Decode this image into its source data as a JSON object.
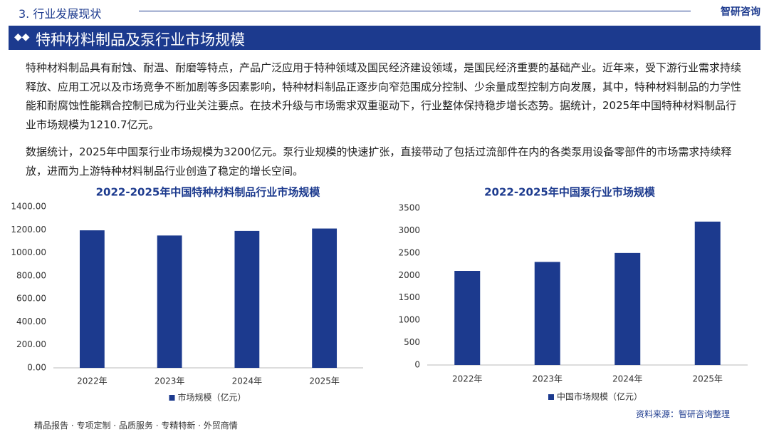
{
  "header": {
    "section": "3. 行业发展现状",
    "logo": "智研咨询",
    "title": "特种材料制品及泵行业市场规模"
  },
  "paragraphs": [
    "特种材料制品具有耐蚀、耐温、耐磨等特点，产品广泛应用于特种领域及国民经济建设领域，是国民经济重要的基础产业。近年来，受下游行业需求持续释放、应用工况以及市场竞争不断加剧等多因素影响，特种材料制品正逐步向窄范围成分控制、少余量成型控制方向发展，其中，特种材料制品的力学性能和耐腐蚀性能耦合控制已成为行业关注要点。在技术升级与市场需求双重驱动下，行业整体保持稳步增长态势。据统计，2025年中国特种材料制品行业市场规模为1210.7亿元。",
    "数据统计，2025年中国泵行业市场规模为3200亿元。泵行业规模的快速扩张，直接带动了包括过流部件在内的各类泵用设备零部件的市场需求持续释放，进而为上游特种材料制品行业创造了稳定的增长空间。"
  ],
  "chart_data": [
    {
      "type": "bar",
      "title": "2022-2025年中国特种材料制品行业市场规模",
      "categories": [
        "2022年",
        "2023年",
        "2024年",
        "2025年"
      ],
      "series": [
        {
          "name": "市场规模（亿元）",
          "color": "#1c3a8e",
          "values": [
            1195,
            1150,
            1190,
            1210.7
          ]
        }
      ],
      "ylim": [
        0,
        1400
      ],
      "yticks": [
        {
          "value": 0,
          "label": "0.00"
        },
        {
          "value": 200,
          "label": "200.00"
        },
        {
          "value": 400,
          "label": "400.00"
        },
        {
          "value": 600,
          "label": "600.00"
        },
        {
          "value": 800,
          "label": "800.00"
        },
        {
          "value": 1000,
          "label": "1000.00"
        },
        {
          "value": 1200,
          "label": "1200.00"
        },
        {
          "value": 1400,
          "label": "1400.00"
        }
      ],
      "grid": false
    },
    {
      "type": "bar",
      "title": "2022-2025年中国泵行业市场规模",
      "categories": [
        "2022年",
        "2023年",
        "2024年",
        "2025年"
      ],
      "series": [
        {
          "name": "中国市场规模（亿元）",
          "color": "#1c3a8e",
          "values": [
            2100,
            2300,
            2500,
            3200
          ]
        }
      ],
      "ylim": [
        0,
        3500
      ],
      "yticks": [
        0,
        500,
        1000,
        1500,
        2000,
        2500,
        3000,
        3500
      ],
      "grid": false
    }
  ],
  "footer": {
    "services": "精品报告 · 专项定制 · 品质服务 · 专精特新 · 外贸商情",
    "source": "资料来源：智研咨询整理"
  }
}
